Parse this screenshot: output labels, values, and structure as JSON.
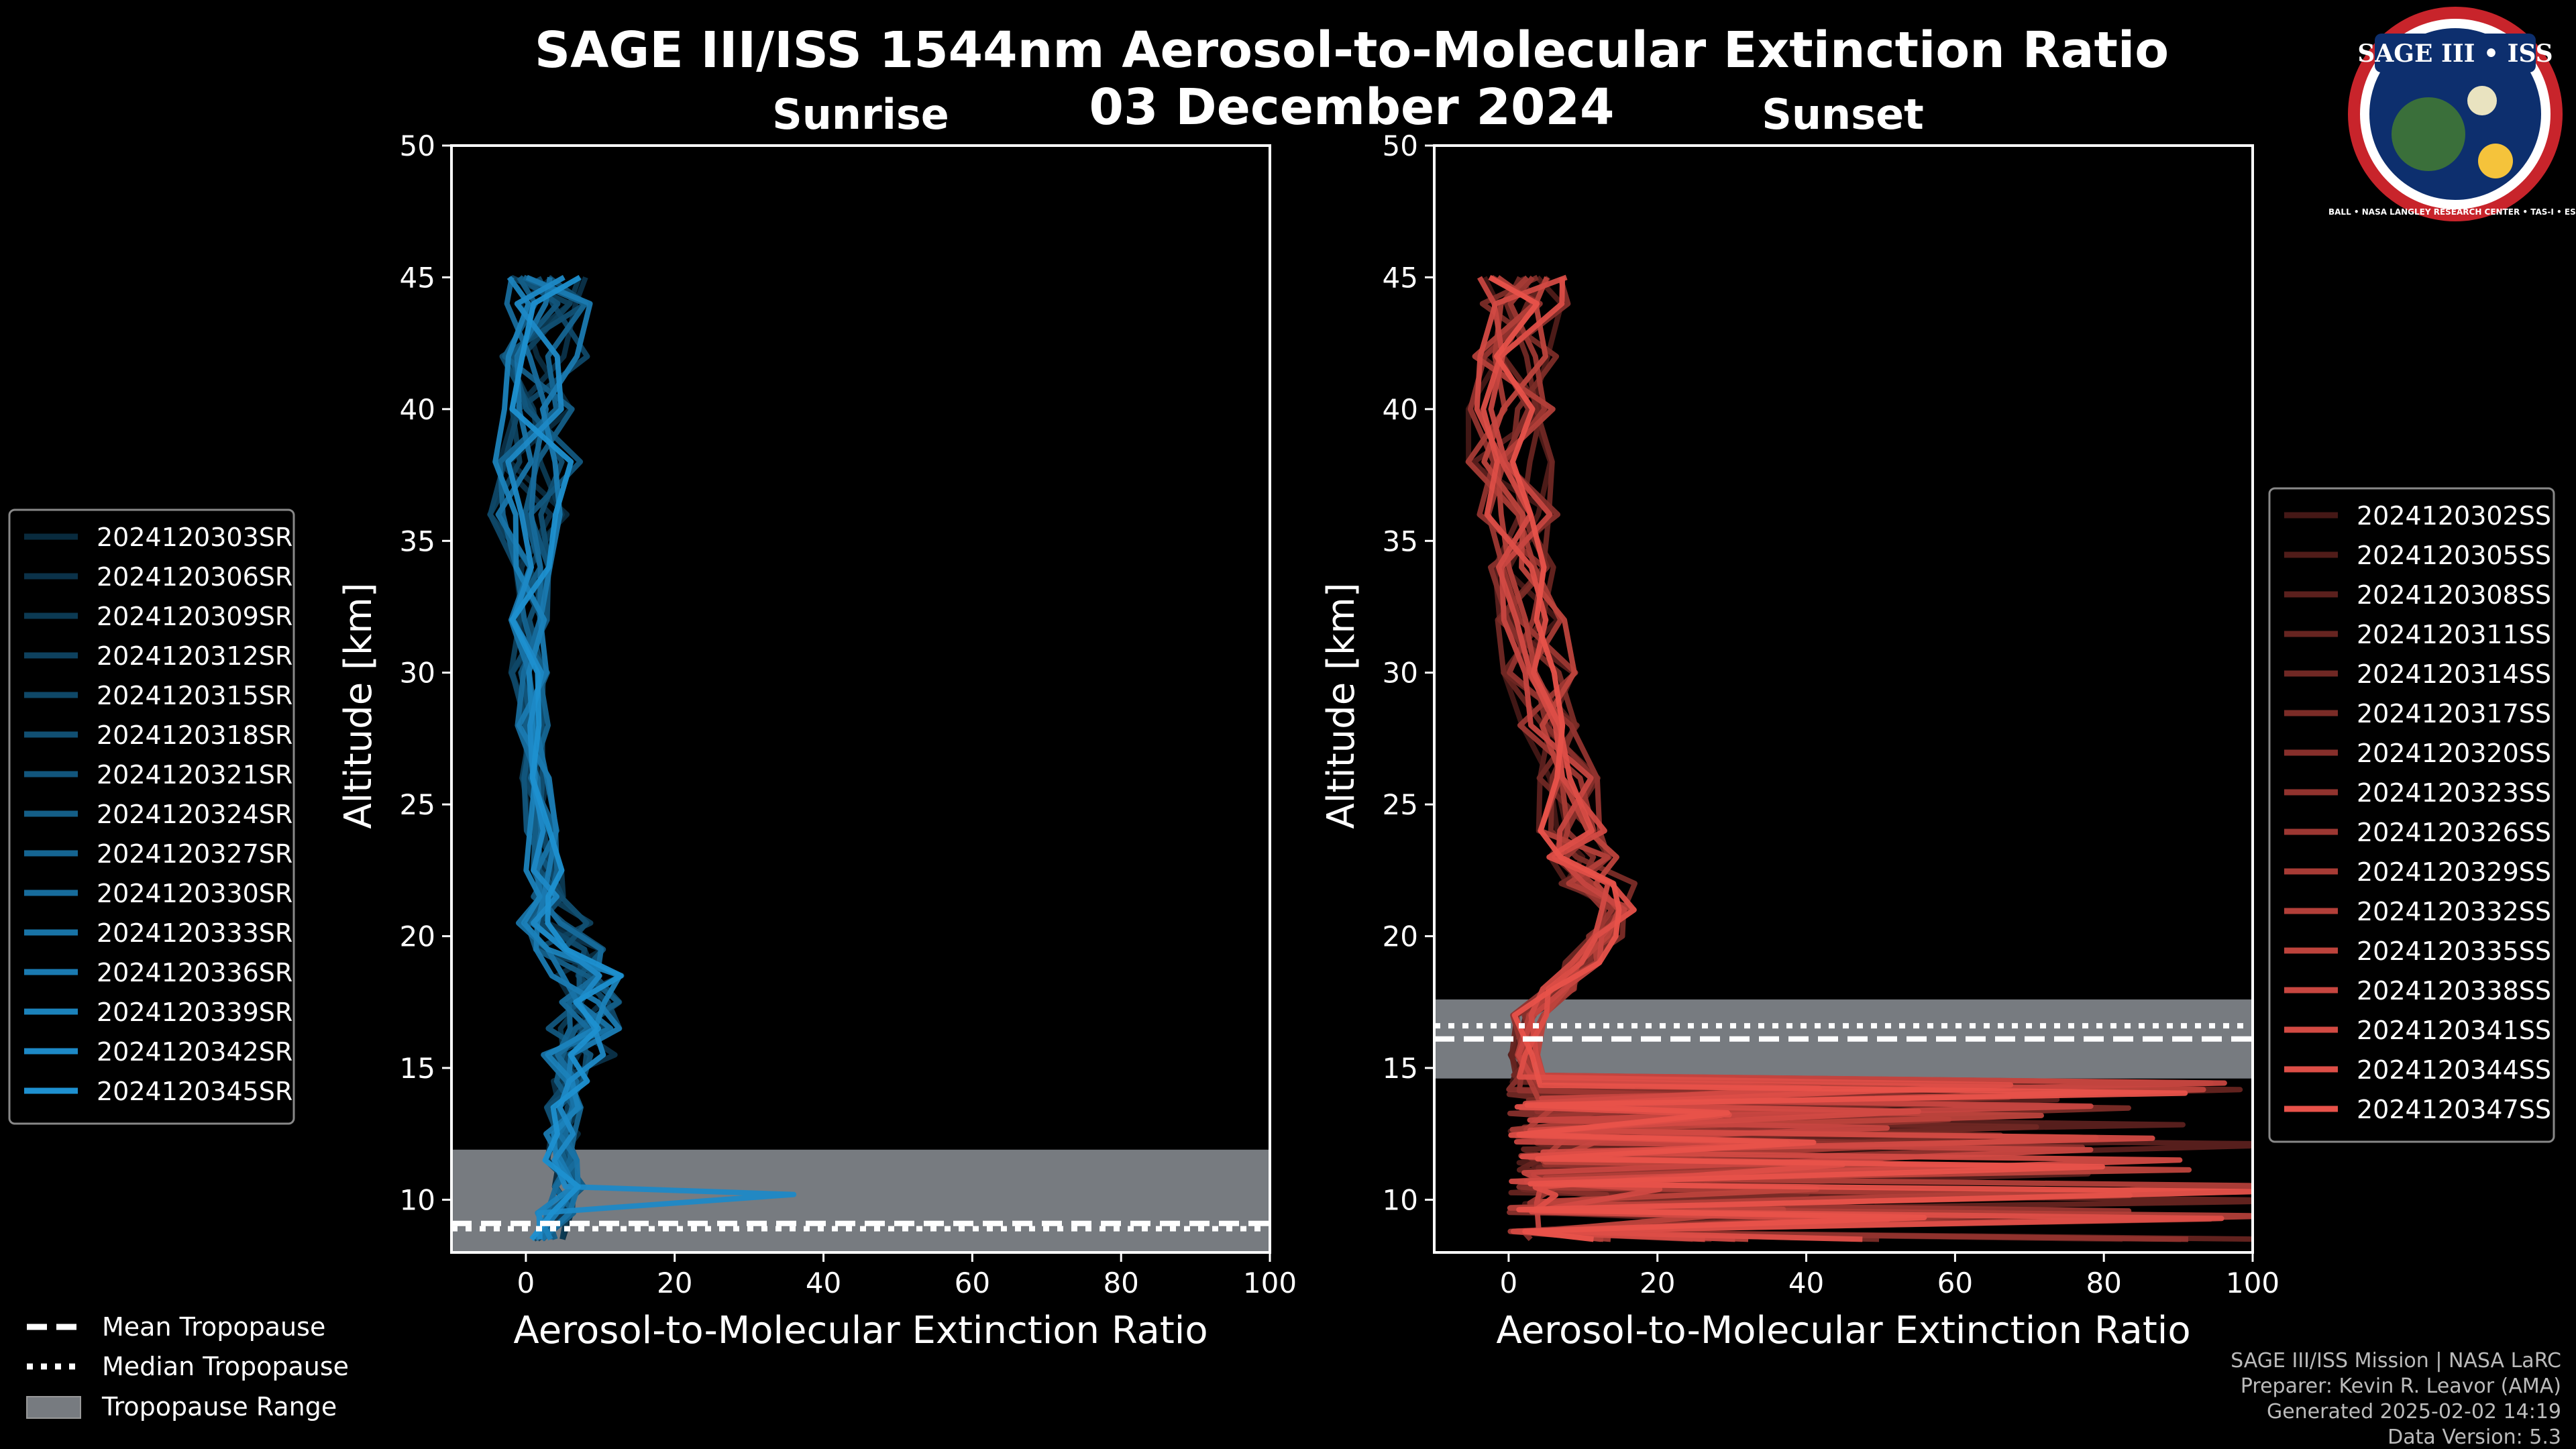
{
  "title": {
    "line1": "SAGE III/ISS 1544nm Aerosol-to-Molecular Extinction Ratio",
    "line2": "03 December 2024"
  },
  "logo": {
    "text": "SAGE III • ISS",
    "ring_text": "BALL • NASA LANGLEY RESEARCH CENTER • TAS-I • ESA"
  },
  "colors": {
    "sunrise": "#1e90d0",
    "sunset": "#e8524a",
    "tropo_fill": "#777b80",
    "background": "#000000"
  },
  "chart_data": [
    {
      "type": "line",
      "panel": "sunrise",
      "title": "Sunrise",
      "xlabel": "Aerosol-to-Molecular Extinction Ratio",
      "ylabel": "Altitude [km]",
      "xlim": [
        -10,
        100
      ],
      "ylim": [
        8,
        50
      ],
      "xticks": [
        "0",
        "20",
        "40",
        "60",
        "80",
        "100"
      ],
      "yticks": [
        "10",
        "15",
        "20",
        "25",
        "30",
        "35",
        "40",
        "45",
        "50"
      ],
      "tropopause": {
        "mean": 9.1,
        "median": 8.9,
        "range": [
          8,
          11.9
        ]
      },
      "legend": [
        "2024120303SR",
        "2024120306SR",
        "2024120309SR",
        "2024120312SR",
        "2024120315SR",
        "2024120318SR",
        "2024120321SR",
        "2024120324SR",
        "2024120327SR",
        "2024120330SR",
        "2024120333SR",
        "2024120336SR",
        "2024120339SR",
        "2024120342SR",
        "2024120345SR"
      ],
      "legend_position": "left",
      "series_base": {
        "altitude": [
          8.5,
          9.5,
          10.5,
          11.5,
          12.5,
          13.5,
          14.5,
          15.5,
          16.5,
          17.5,
          18.5,
          19.5,
          20.5,
          21.5,
          22.5,
          24,
          26,
          28,
          30,
          32,
          34,
          36,
          38,
          40,
          42,
          44,
          45
        ],
        "ratio": [
          3,
          4,
          6,
          5,
          5,
          5,
          6,
          7,
          8,
          9,
          8,
          6,
          4,
          3,
          2.5,
          2,
          1.5,
          1,
          0.5,
          0.5,
          1,
          1,
          1.5,
          2,
          2.5,
          3,
          3
        ],
        "spike": {
          "altitude": 10.2,
          "ratio": 36
        }
      }
    },
    {
      "type": "line",
      "panel": "sunset",
      "title": "Sunset",
      "xlabel": "Aerosol-to-Molecular Extinction Ratio",
      "ylabel": "Altitude [km]",
      "xlim": [
        -10,
        100
      ],
      "ylim": [
        8,
        50
      ],
      "xticks": [
        "0",
        "20",
        "40",
        "60",
        "80",
        "100"
      ],
      "yticks": [
        "10",
        "15",
        "20",
        "25",
        "30",
        "35",
        "40",
        "45",
        "50"
      ],
      "tropopause": {
        "mean": 16.1,
        "median": 16.6,
        "range": [
          14.6,
          17.6
        ]
      },
      "legend": [
        "2024120302SS",
        "2024120305SS",
        "2024120308SS",
        "2024120311SS",
        "2024120314SS",
        "2024120317SS",
        "2024120320SS",
        "2024120323SS",
        "2024120326SS",
        "2024120329SS",
        "2024120332SS",
        "2024120335SS",
        "2024120338SS",
        "2024120341SS",
        "2024120344SS",
        "2024120347SS"
      ],
      "legend_position": "right",
      "series_base": {
        "altitude": [
          8.5,
          10,
          12,
          14,
          15.5,
          17,
          18,
          19,
          20,
          21,
          22,
          23,
          24,
          26,
          28,
          30,
          32,
          34,
          36,
          38,
          40,
          42,
          44,
          45
        ],
        "ratio": [
          2,
          1.5,
          1.5,
          2,
          2,
          3,
          7,
          10,
          13,
          15,
          12,
          10,
          8,
          7,
          5,
          4,
          3,
          2,
          1.5,
          0.5,
          0,
          1,
          2,
          2
        ]
      }
    }
  ],
  "legend_common": {
    "mean": "Mean Tropopause",
    "median": "Median Tropopause",
    "range": "Tropopause Range"
  },
  "footer": {
    "line1": "SAGE III/ISS Mission | NASA LaRC",
    "line2": "Preparer: Kevin R. Leavor (AMA)",
    "line3": "Generated 2025-02-02 14:19",
    "line4": "Data Version: 5.3"
  }
}
